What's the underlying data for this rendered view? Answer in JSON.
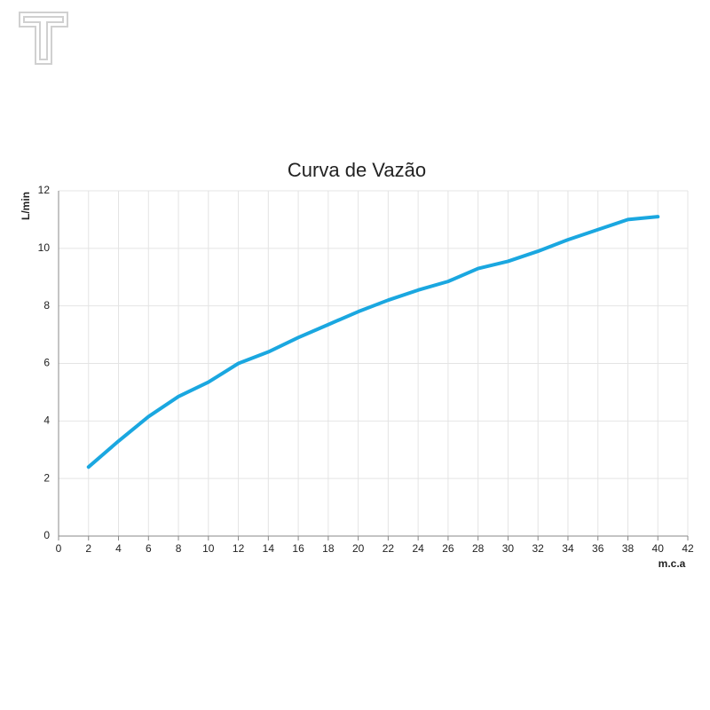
{
  "chart_data": {
    "type": "line",
    "title": "Curva de Vazão",
    "x_label": "m.c.a",
    "y_label": "L/min",
    "x": [
      2,
      4,
      6,
      8,
      10,
      12,
      14,
      16,
      18,
      20,
      22,
      24,
      26,
      28,
      30,
      32,
      34,
      36,
      38,
      40
    ],
    "series": [
      {
        "color": "#1aa7e0",
        "values": [
          2.4,
          3.3,
          4.15,
          4.85,
          5.35,
          6.0,
          6.4,
          6.9,
          7.35,
          7.8,
          8.2,
          8.55,
          8.85,
          9.3,
          9.55,
          9.9,
          10.3,
          10.65,
          11.0,
          11.1
        ]
      }
    ],
    "xlim": [
      0,
      42
    ],
    "xticks": [
      0,
      2,
      4,
      6,
      8,
      10,
      12,
      14,
      16,
      18,
      20,
      22,
      24,
      26,
      28,
      30,
      32,
      34,
      36,
      38,
      40,
      42
    ],
    "ylim": [
      0,
      12
    ],
    "yticks": [
      0,
      2,
      4,
      6,
      8,
      10,
      12
    ],
    "grid": true
  }
}
